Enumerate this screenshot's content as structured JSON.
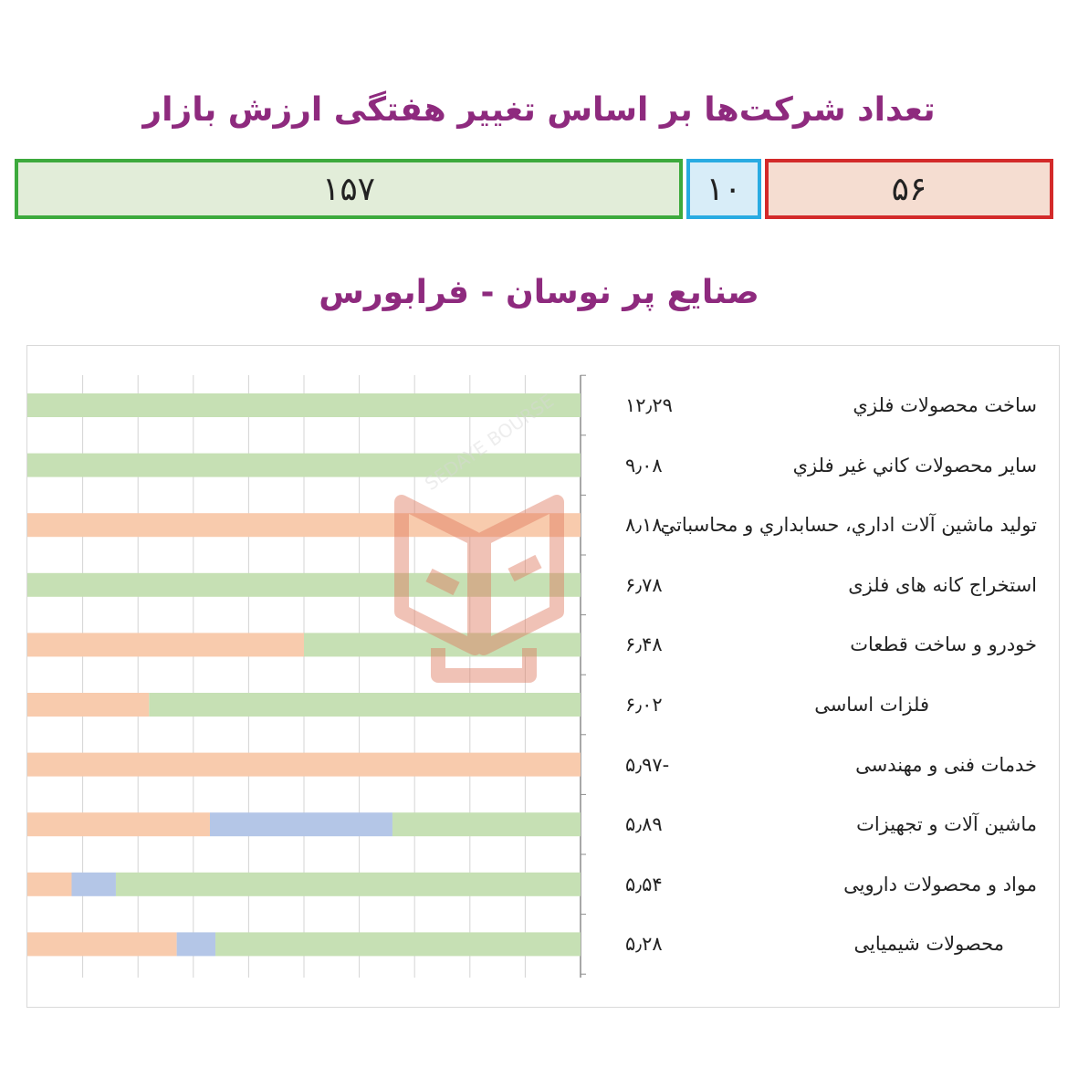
{
  "header": {
    "title": "تعداد شرکت‌ها بر اساس تغییر هفتگی ارزش بازار"
  },
  "counts": {
    "up": "۱۵۷",
    "flat": "۱۰",
    "down": "۵۶"
  },
  "chart_title": "صنایع پر نوسان - فرابورس",
  "watermark_text": "SEDAYE BOURSE",
  "colors": {
    "up": "#c6e0b4",
    "flat": "#b4c6e7",
    "down": "#f8cbad",
    "title": "#8e2a7e"
  },
  "chart_data": {
    "type": "bar",
    "orientation": "horizontal",
    "stacked": "percent",
    "grid": true,
    "series": [
      {
        "name": "",
        "role": "down",
        "values": [
          0,
          0,
          100,
          0,
          50,
          22,
          100,
          33,
          8,
          27
        ]
      },
      {
        "name": "",
        "role": "flat",
        "values": [
          0,
          0,
          0,
          0,
          0,
          0,
          0,
          33,
          8,
          7
        ]
      },
      {
        "name": "",
        "role": "up",
        "values": [
          100,
          100,
          0,
          100,
          50,
          78,
          0,
          34,
          84,
          66
        ]
      }
    ],
    "rows": [
      {
        "label": "ساخت محصولات فلزي",
        "value": "۱۲٫۲۹"
      },
      {
        "label": "ساير محصولات كاني غير فلزي",
        "value": "۹٫۰۸"
      },
      {
        "label": "توليد ماشين آلات اداري، حسابداري و محاسباتي",
        "value": "-۸٫۱۸"
      },
      {
        "label": "استخراج کانه های فلزی",
        "value": "۶٫۷۸"
      },
      {
        "label": "خودرو و ساخت قطعات",
        "value": "۶٫۴۸"
      },
      {
        "label": "فلزات اساسی",
        "value": "۶٫۰۲"
      },
      {
        "label": "خدمات فنی و مهندسی",
        "value": "-۵٫۹۷"
      },
      {
        "label": "ماشین آلات و تجهیزات",
        "value": "۵٫۸۹"
      },
      {
        "label": "مواد و محصولات دارویی",
        "value": "۵٫۵۴"
      },
      {
        "label": "محصولات شیمیایی",
        "value": "۵٫۲۸"
      }
    ]
  }
}
